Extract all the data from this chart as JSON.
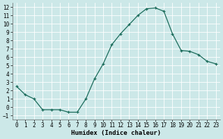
{
  "x": [
    0,
    1,
    2,
    3,
    4,
    5,
    6,
    7,
    8,
    9,
    10,
    11,
    12,
    13,
    14,
    15,
    16,
    17,
    18,
    19,
    20,
    21,
    22,
    23
  ],
  "y": [
    2.5,
    1.5,
    1.0,
    -0.3,
    -0.3,
    -0.3,
    -0.6,
    -0.6,
    1.0,
    3.4,
    5.2,
    7.5,
    8.8,
    9.9,
    11.0,
    11.8,
    11.9,
    11.5,
    8.8,
    6.8,
    6.7,
    6.3,
    5.5,
    5.2
  ],
  "line_color": "#1a6b5a",
  "marker": "+",
  "bg_color": "#cce8e8",
  "grid_bg_color": "#dce8e8",
  "grid_color": "#ffffff",
  "xlabel": "Humidex (Indice chaleur)",
  "ylim": [
    -1.5,
    12.5
  ],
  "xlim": [
    -0.5,
    23.5
  ],
  "yticks": [
    -1,
    0,
    1,
    2,
    3,
    4,
    5,
    6,
    7,
    8,
    9,
    10,
    11,
    12
  ],
  "xticks": [
    0,
    1,
    2,
    3,
    4,
    5,
    6,
    7,
    8,
    9,
    10,
    11,
    12,
    13,
    14,
    15,
    16,
    17,
    18,
    19,
    20,
    21,
    22,
    23
  ],
  "label_fontsize": 6.5,
  "tick_fontsize": 5.5,
  "linewidth": 0.9,
  "markersize": 3,
  "markeredgewidth": 0.9
}
